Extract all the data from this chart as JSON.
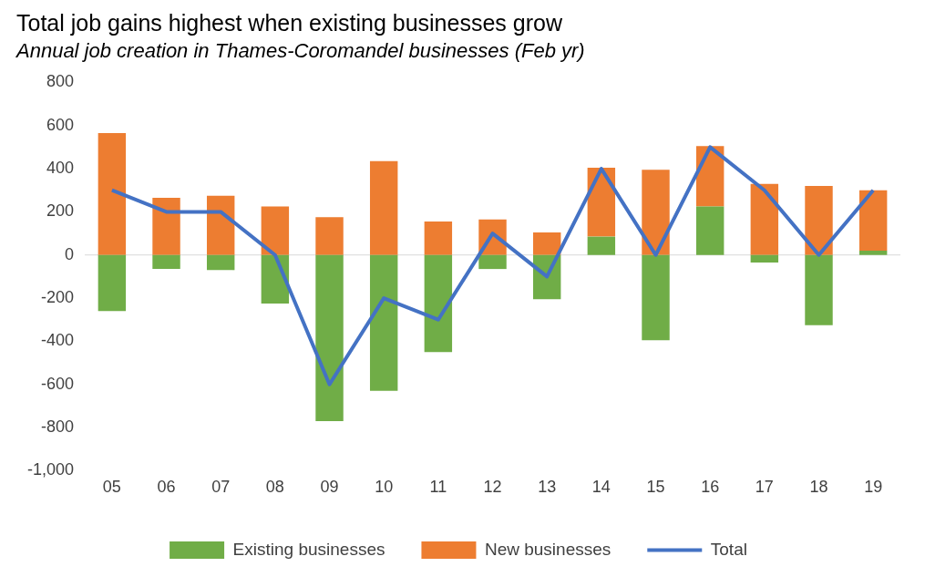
{
  "chart_data": {
    "type": "bar",
    "title": "Total job gains highest when existing businesses grow",
    "subtitle": "Annual job creation in Thames-Coromandel businesses (Feb yr)",
    "categories": [
      "05",
      "06",
      "07",
      "08",
      "09",
      "10",
      "11",
      "12",
      "13",
      "14",
      "15",
      "16",
      "17",
      "18",
      "19"
    ],
    "stacked": true,
    "series": [
      {
        "name": "Existing businesses",
        "color": "#70ad47",
        "values": [
          -260,
          -65,
          -70,
          -225,
          -770,
          -630,
          -450,
          -65,
          -205,
          85,
          -395,
          225,
          -35,
          -325,
          20
        ]
      },
      {
        "name": "New businesses",
        "color": "#ed7d31",
        "values": [
          565,
          265,
          275,
          225,
          175,
          435,
          155,
          165,
          105,
          320,
          395,
          280,
          330,
          320,
          280
        ]
      },
      {
        "name": "Total",
        "type": "line",
        "color": "#4472c4",
        "values": [
          300,
          200,
          200,
          0,
          -600,
          -200,
          -300,
          100,
          -100,
          400,
          0,
          500,
          300,
          0,
          300
        ]
      }
    ],
    "ylim": [
      -1000,
      800
    ],
    "yticks": [
      {
        "value": -1000,
        "label": "-1,000"
      },
      -800,
      -600,
      -400,
      -200,
      0,
      200,
      400,
      600,
      800
    ],
    "grid": false,
    "ref_lines": [
      {
        "axis": "y",
        "value": 0,
        "color": "#d9d9d9"
      }
    ],
    "legend": "bottom"
  }
}
